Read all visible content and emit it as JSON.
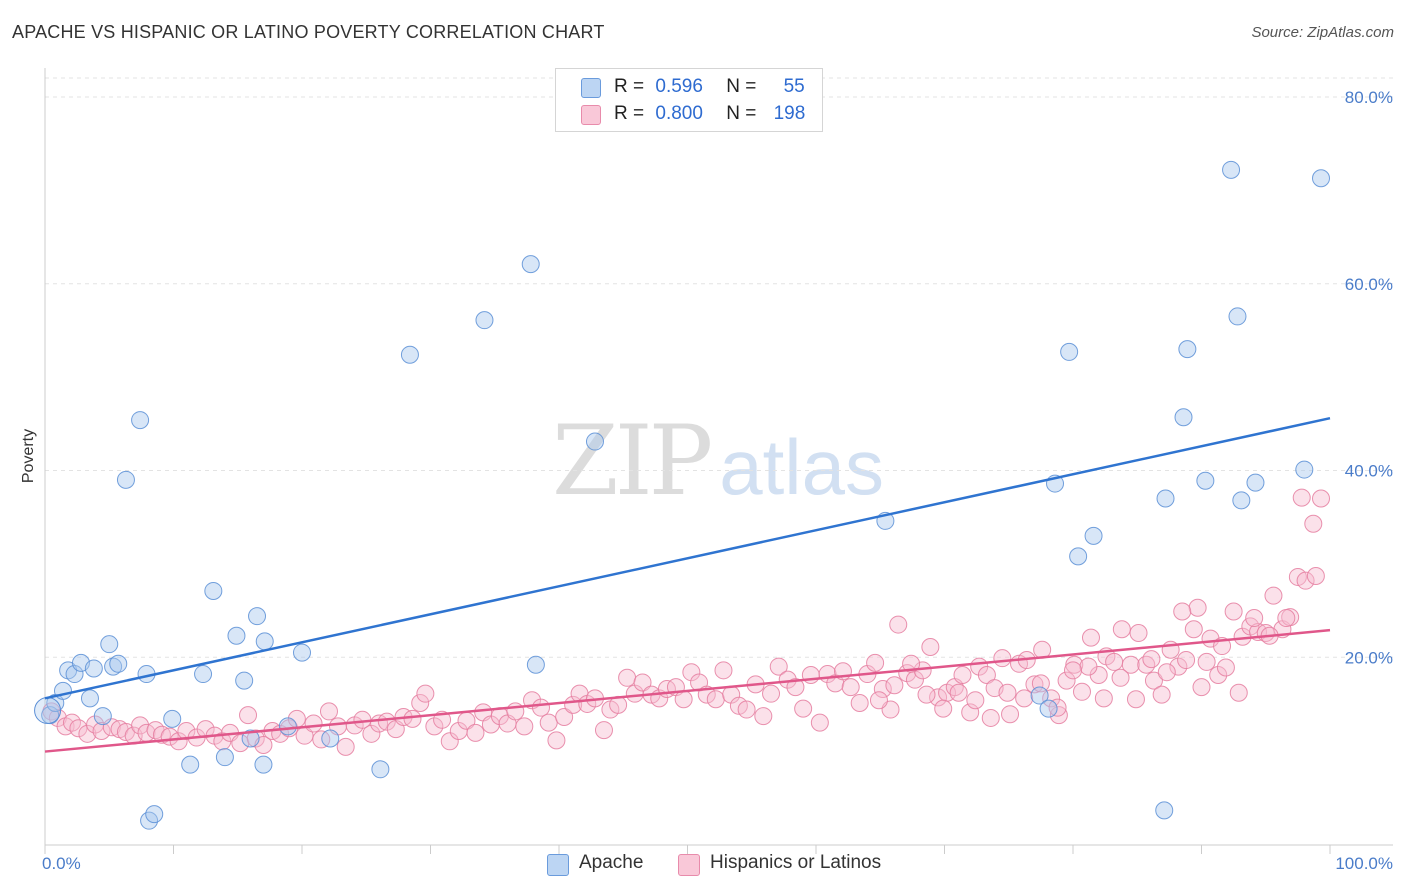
{
  "title": "APACHE VS HISPANIC OR LATINO POVERTY CORRELATION CHART",
  "source": "Source: ZipAtlas.com",
  "watermark": {
    "zip": "ZIP",
    "atlas": "atlas"
  },
  "legend": {
    "rows": [
      {
        "r_label": "R =",
        "r_value": "0.596",
        "n_label": "N =",
        "n_value": "55"
      },
      {
        "r_label": "R =",
        "r_value": "0.800",
        "n_label": "N =",
        "n_value": "198"
      }
    ]
  },
  "chart_data": {
    "type": "scatter",
    "title": "APACHE VS HISPANIC OR LATINO POVERTY CORRELATION CHART",
    "xlabel": "",
    "ylabel": "Poverty",
    "xlim": [
      0,
      100
    ],
    "ylim": [
      0,
      80
    ],
    "x_tick_labels": [
      "0.0%",
      "100.0%"
    ],
    "y_ticks": [
      20,
      40,
      60,
      80
    ],
    "y_tick_labels": [
      "20.0%",
      "40.0%",
      "60.0%",
      "80.0%"
    ],
    "grid": true,
    "legend_position": "top-center",
    "series": [
      {
        "name": "Apache",
        "color": "#a9c8ee",
        "edge_color": "#5b8fd6",
        "line_color": "#2f74d0",
        "trend": {
          "x": [
            0,
            100
          ],
          "y": [
            15.6,
            45.6
          ]
        },
        "points": [
          [
            0.4,
            13.8
          ],
          [
            0.8,
            15.1
          ],
          [
            1.4,
            16.4
          ],
          [
            1.8,
            18.6
          ],
          [
            2.3,
            18.2
          ],
          [
            2.8,
            19.4
          ],
          [
            3.5,
            15.6
          ],
          [
            3.8,
            18.8
          ],
          [
            4.5,
            13.7
          ],
          [
            5.0,
            21.4
          ],
          [
            5.3,
            19.0
          ],
          [
            5.7,
            19.3
          ],
          [
            7.4,
            45.4
          ],
          [
            7.9,
            18.2
          ],
          [
            8.1,
            2.5
          ],
          [
            8.5,
            3.2
          ],
          [
            9.9,
            13.4
          ],
          [
            11.3,
            8.5
          ],
          [
            12.3,
            18.2
          ],
          [
            13.1,
            27.1
          ],
          [
            14.0,
            9.3
          ],
          [
            14.9,
            22.3
          ],
          [
            15.5,
            17.5
          ],
          [
            16.0,
            11.3
          ],
          [
            16.5,
            24.4
          ],
          [
            17.0,
            8.5
          ],
          [
            17.1,
            21.7
          ],
          [
            18.9,
            12.6
          ],
          [
            20.0,
            20.5
          ],
          [
            22.2,
            11.3
          ],
          [
            26.1,
            8.0
          ],
          [
            28.4,
            52.4
          ],
          [
            34.2,
            56.1
          ],
          [
            37.8,
            62.1
          ],
          [
            38.2,
            19.2
          ],
          [
            42.8,
            43.1
          ],
          [
            6.3,
            39.0
          ],
          [
            65.4,
            34.6
          ],
          [
            77.4,
            15.9
          ],
          [
            78.1,
            14.5
          ],
          [
            78.6,
            38.6
          ],
          [
            79.7,
            52.7
          ],
          [
            80.4,
            30.8
          ],
          [
            81.6,
            33.0
          ],
          [
            87.2,
            37.0
          ],
          [
            87.1,
            3.6
          ],
          [
            88.6,
            45.7
          ],
          [
            88.9,
            53.0
          ],
          [
            90.3,
            38.9
          ],
          [
            92.3,
            72.2
          ],
          [
            92.8,
            56.5
          ],
          [
            93.1,
            36.8
          ],
          [
            94.2,
            38.7
          ],
          [
            98.0,
            40.1
          ],
          [
            99.3,
            71.3
          ]
        ]
      },
      {
        "name": "Hispanics or Latinos",
        "color": "#f7bdd0",
        "edge_color": "#e57ea0",
        "line_color": "#e0578a",
        "trend": {
          "x": [
            0,
            100
          ],
          "y": [
            9.9,
            22.9
          ]
        },
        "points": [
          [
            0.5,
            14.2
          ],
          [
            1.0,
            13.5
          ],
          [
            1.6,
            12.6
          ],
          [
            2.1,
            13.0
          ],
          [
            2.6,
            12.4
          ],
          [
            3.3,
            11.8
          ],
          [
            3.9,
            12.8
          ],
          [
            4.4,
            12.1
          ],
          [
            5.2,
            12.5
          ],
          [
            5.8,
            12.3
          ],
          [
            6.3,
            12.0
          ],
          [
            6.9,
            11.6
          ],
          [
            7.4,
            12.7
          ],
          [
            7.9,
            11.9
          ],
          [
            8.6,
            12.2
          ],
          [
            9.1,
            11.7
          ],
          [
            9.7,
            11.5
          ],
          [
            10.4,
            11.0
          ],
          [
            11.0,
            12.1
          ],
          [
            11.8,
            11.4
          ],
          [
            12.5,
            12.3
          ],
          [
            13.2,
            11.6
          ],
          [
            13.8,
            11.0
          ],
          [
            14.4,
            11.9
          ],
          [
            15.2,
            10.8
          ],
          [
            15.8,
            13.8
          ],
          [
            16.4,
            11.3
          ],
          [
            17.0,
            10.6
          ],
          [
            17.7,
            12.1
          ],
          [
            18.3,
            11.8
          ],
          [
            19.0,
            12.4
          ],
          [
            19.6,
            13.4
          ],
          [
            20.2,
            11.6
          ],
          [
            20.9,
            12.9
          ],
          [
            21.5,
            11.2
          ],
          [
            22.1,
            14.2
          ],
          [
            22.8,
            12.6
          ],
          [
            23.4,
            10.4
          ],
          [
            24.1,
            12.7
          ],
          [
            24.7,
            13.3
          ],
          [
            25.4,
            11.8
          ],
          [
            26.0,
            12.9
          ],
          [
            26.6,
            13.1
          ],
          [
            27.3,
            12.3
          ],
          [
            27.9,
            13.6
          ],
          [
            28.6,
            13.4
          ],
          [
            29.2,
            15.1
          ],
          [
            29.6,
            16.1
          ],
          [
            30.3,
            12.6
          ],
          [
            30.9,
            13.3
          ],
          [
            31.5,
            11.0
          ],
          [
            32.2,
            12.1
          ],
          [
            32.8,
            13.2
          ],
          [
            33.5,
            11.9
          ],
          [
            34.1,
            14.1
          ],
          [
            34.7,
            12.8
          ],
          [
            35.4,
            13.7
          ],
          [
            36.0,
            12.9
          ],
          [
            36.6,
            14.2
          ],
          [
            37.3,
            12.6
          ],
          [
            37.9,
            15.4
          ],
          [
            38.6,
            14.6
          ],
          [
            39.2,
            13.0
          ],
          [
            39.8,
            11.1
          ],
          [
            40.4,
            13.6
          ],
          [
            41.1,
            14.9
          ],
          [
            41.6,
            16.1
          ],
          [
            42.2,
            15.0
          ],
          [
            42.8,
            15.6
          ],
          [
            43.5,
            12.2
          ],
          [
            44.0,
            14.4
          ],
          [
            44.6,
            14.9
          ],
          [
            45.3,
            17.8
          ],
          [
            45.9,
            16.1
          ],
          [
            46.5,
            17.3
          ],
          [
            47.2,
            16.0
          ],
          [
            47.8,
            15.6
          ],
          [
            48.4,
            16.6
          ],
          [
            49.1,
            16.8
          ],
          [
            49.7,
            15.5
          ],
          [
            50.3,
            18.4
          ],
          [
            50.9,
            17.3
          ],
          [
            51.5,
            16.0
          ],
          [
            52.2,
            15.5
          ],
          [
            52.8,
            18.6
          ],
          [
            53.4,
            16.0
          ],
          [
            54.0,
            14.8
          ],
          [
            54.6,
            14.4
          ],
          [
            55.3,
            17.1
          ],
          [
            55.9,
            13.7
          ],
          [
            56.5,
            16.1
          ],
          [
            57.1,
            19.0
          ],
          [
            57.8,
            17.6
          ],
          [
            58.4,
            16.8
          ],
          [
            59.0,
            14.5
          ],
          [
            59.6,
            18.1
          ],
          [
            60.3,
            13.0
          ],
          [
            60.9,
            18.2
          ],
          [
            61.5,
            17.2
          ],
          [
            62.1,
            18.5
          ],
          [
            62.7,
            16.8
          ],
          [
            63.4,
            15.1
          ],
          [
            64.0,
            18.2
          ],
          [
            64.6,
            19.4
          ],
          [
            65.2,
            16.6
          ],
          [
            65.8,
            14.4
          ],
          [
            66.4,
            23.5
          ],
          [
            67.1,
            18.3
          ],
          [
            67.7,
            17.6
          ],
          [
            68.3,
            18.6
          ],
          [
            68.9,
            21.1
          ],
          [
            69.5,
            15.7
          ],
          [
            70.2,
            16.2
          ],
          [
            70.8,
            16.8
          ],
          [
            71.4,
            18.1
          ],
          [
            72.0,
            14.1
          ],
          [
            72.7,
            19.0
          ],
          [
            73.3,
            18.1
          ],
          [
            73.9,
            16.7
          ],
          [
            74.5,
            19.9
          ],
          [
            75.1,
            13.9
          ],
          [
            75.8,
            19.3
          ],
          [
            76.4,
            19.7
          ],
          [
            77.0,
            17.1
          ],
          [
            77.6,
            20.8
          ],
          [
            78.3,
            15.6
          ],
          [
            78.9,
            13.8
          ],
          [
            79.5,
            17.5
          ],
          [
            80.1,
            19.2
          ],
          [
            80.7,
            16.3
          ],
          [
            81.4,
            22.1
          ],
          [
            82.0,
            18.1
          ],
          [
            82.6,
            20.1
          ],
          [
            83.2,
            19.5
          ],
          [
            83.8,
            23.0
          ],
          [
            84.5,
            19.2
          ],
          [
            85.1,
            22.6
          ],
          [
            85.7,
            19.2
          ],
          [
            86.3,
            17.5
          ],
          [
            86.9,
            16.0
          ],
          [
            87.6,
            20.8
          ],
          [
            88.2,
            19.0
          ],
          [
            88.8,
            19.7
          ],
          [
            89.4,
            23.0
          ],
          [
            90.0,
            16.8
          ],
          [
            90.7,
            22.0
          ],
          [
            91.3,
            18.1
          ],
          [
            91.9,
            18.9
          ],
          [
            92.5,
            24.9
          ],
          [
            93.2,
            22.2
          ],
          [
            93.8,
            23.3
          ],
          [
            94.4,
            22.7
          ],
          [
            95.0,
            22.6
          ],
          [
            95.6,
            26.6
          ],
          [
            96.3,
            23.0
          ],
          [
            96.9,
            24.3
          ],
          [
            97.5,
            28.6
          ],
          [
            98.1,
            28.2
          ],
          [
            98.7,
            34.3
          ],
          [
            99.3,
            37.0
          ],
          [
            98.9,
            28.7
          ],
          [
            97.8,
            37.1
          ],
          [
            96.6,
            24.2
          ],
          [
            95.3,
            22.3
          ],
          [
            94.1,
            24.2
          ],
          [
            92.9,
            16.2
          ],
          [
            91.6,
            21.2
          ],
          [
            90.4,
            19.5
          ],
          [
            89.7,
            25.3
          ],
          [
            88.5,
            24.9
          ],
          [
            87.3,
            18.4
          ],
          [
            86.1,
            19.8
          ],
          [
            84.9,
            15.5
          ],
          [
            83.7,
            17.8
          ],
          [
            82.4,
            15.6
          ],
          [
            81.2,
            19.0
          ],
          [
            80.0,
            18.6
          ],
          [
            78.8,
            14.6
          ],
          [
            77.5,
            17.2
          ],
          [
            76.2,
            15.6
          ],
          [
            74.9,
            16.2
          ],
          [
            73.6,
            13.5
          ],
          [
            72.4,
            15.4
          ],
          [
            71.1,
            16.2
          ],
          [
            69.9,
            14.5
          ],
          [
            68.6,
            16.0
          ],
          [
            67.4,
            19.3
          ],
          [
            66.1,
            17.0
          ],
          [
            64.9,
            15.4
          ]
        ]
      }
    ]
  }
}
